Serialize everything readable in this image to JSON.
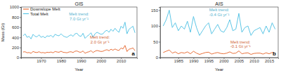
{
  "chart_data": [
    {
      "type": "line",
      "title": "GIS",
      "panel_label": "a",
      "x_label": "Year",
      "y_label": "Mass (Gt)",
      "legend": "upper left",
      "x": [
        1961,
        1962,
        1963,
        1964,
        1965,
        1966,
        1967,
        1968,
        1969,
        1970,
        1971,
        1972,
        1973,
        1974,
        1975,
        1976,
        1977,
        1978,
        1979,
        1980,
        1981,
        1982,
        1983,
        1984,
        1985,
        1986,
        1987,
        1988,
        1989,
        1990,
        1991,
        1992,
        1993,
        1994,
        1995,
        1996,
        1997,
        1998,
        1999,
        2000,
        2001,
        2002,
        2003,
        2004,
        2005,
        2006,
        2007,
        2008,
        2009,
        2010,
        2011,
        2012,
        2013,
        2014,
        2015,
        2016,
        2017
      ],
      "series": [
        {
          "name": "Downslope Melt",
          "color": "#e8703a",
          "values": [
            110,
            115,
            95,
            100,
            85,
            120,
            105,
            100,
            115,
            95,
            100,
            90,
            105,
            100,
            110,
            95,
            120,
            110,
            105,
            125,
            105,
            100,
            95,
            110,
            115,
            100,
            125,
            130,
            110,
            105,
            130,
            85,
            105,
            115,
            135,
            100,
            125,
            140,
            130,
            120,
            125,
            145,
            155,
            135,
            165,
            145,
            170,
            150,
            140,
            190,
            170,
            240,
            120,
            165,
            175,
            190,
            135
          ]
        },
        {
          "name": "Total Melt",
          "color": "#5cc6e6",
          "values": [
            430,
            470,
            400,
            420,
            370,
            460,
            420,
            410,
            450,
            400,
            420,
            390,
            430,
            420,
            440,
            400,
            460,
            440,
            430,
            470,
            430,
            410,
            400,
            430,
            450,
            420,
            470,
            480,
            430,
            420,
            480,
            380,
            420,
            450,
            490,
            400,
            470,
            500,
            480,
            460,
            470,
            520,
            540,
            500,
            560,
            520,
            580,
            530,
            500,
            620,
            580,
            700,
            470,
            560,
            590,
            620,
            490
          ]
        }
      ],
      "annotations": [
        [
          "Melt trend:",
          "2.0 Gt yr⁻¹"
        ],
        [
          "Melt trend:",
          "7.0 Gt yr⁻¹"
        ]
      ],
      "xlim": [
        1960,
        2018
      ],
      "xticks": [
        1970,
        1980,
        1990,
        2000,
        2010
      ],
      "ylim": [
        0,
        1000
      ],
      "yticks": [
        0,
        200,
        400,
        600,
        800,
        1000
      ]
    },
    {
      "type": "line",
      "title": "AIS",
      "panel_label": "b",
      "x_label": "Year",
      "x": [
        1980,
        1981,
        1982,
        1983,
        1984,
        1985,
        1986,
        1987,
        1988,
        1989,
        1990,
        1991,
        1992,
        1993,
        1994,
        1995,
        1996,
        1997,
        1998,
        1999,
        2000,
        2001,
        2002,
        2003,
        2004,
        2005,
        2006,
        2007,
        2008,
        2009,
        2010,
        2011,
        2012,
        2013,
        2014,
        2015,
        2016,
        2017
      ],
      "series": [
        {
          "color": "#e8703a",
          "values": [
            16,
            20,
            24,
            14,
            18,
            12,
            16,
            14,
            18,
            12,
            20,
            14,
            10,
            13,
            16,
            17,
            11,
            14,
            16,
            13,
            12,
            14,
            18,
            13,
            14,
            21,
            12,
            14,
            15,
            10,
            13,
            14,
            14,
            11,
            15,
            12,
            16,
            14
          ]
        },
        {
          "color": "#5cc6e6",
          "values": [
            100,
            120,
            150,
            95,
            110,
            85,
            100,
            90,
            115,
            80,
            130,
            95,
            70,
            85,
            100,
            110,
            75,
            90,
            105,
            85,
            80,
            95,
            120,
            85,
            90,
            140,
            80,
            95,
            100,
            70,
            85,
            90,
            95,
            75,
            100,
            80,
            110,
            90
          ]
        }
      ],
      "annotations": [
        [
          "Melt trend:",
          "-0.1 Gt yr⁻¹"
        ],
        [
          "Melt trend:",
          "-0.4 Gt yr⁻¹"
        ]
      ],
      "xlim": [
        1979,
        2018
      ],
      "xticks": [
        1985,
        1990,
        1995,
        2000,
        2005,
        2010,
        2015
      ],
      "ylim": [
        0,
        160
      ],
      "yticks": [
        0,
        50,
        100,
        150
      ]
    }
  ]
}
